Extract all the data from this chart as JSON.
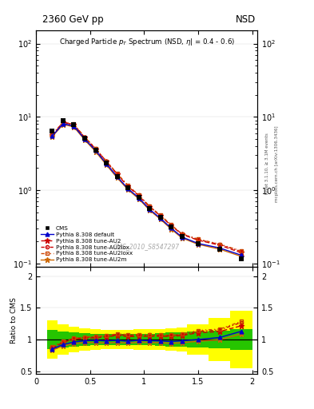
{
  "cms_x": [
    0.15,
    0.25,
    0.35,
    0.45,
    0.55,
    0.65,
    0.75,
    0.85,
    0.95,
    1.05,
    1.15,
    1.25,
    1.35,
    1.5,
    1.7,
    1.9
  ],
  "cms_y": [
    6.5,
    8.8,
    7.8,
    5.1,
    3.55,
    2.35,
    1.55,
    1.08,
    0.8,
    0.56,
    0.425,
    0.315,
    0.235,
    0.188,
    0.158,
    0.115
  ],
  "default_x": [
    0.15,
    0.25,
    0.35,
    0.45,
    0.55,
    0.65,
    0.75,
    0.85,
    0.95,
    1.05,
    1.15,
    1.25,
    1.35,
    1.5,
    1.7,
    1.9
  ],
  "default_y": [
    5.5,
    8.1,
    7.5,
    5.0,
    3.5,
    2.3,
    1.53,
    1.05,
    0.79,
    0.55,
    0.415,
    0.305,
    0.23,
    0.188,
    0.163,
    0.13
  ],
  "au2_x": [
    0.15,
    0.25,
    0.35,
    0.45,
    0.55,
    0.65,
    0.75,
    0.85,
    0.95,
    1.05,
    1.15,
    1.25,
    1.35,
    1.5,
    1.7,
    1.9
  ],
  "au2_y": [
    5.6,
    8.4,
    7.8,
    5.2,
    3.65,
    2.45,
    1.65,
    1.13,
    0.84,
    0.59,
    0.448,
    0.33,
    0.25,
    0.208,
    0.178,
    0.14
  ],
  "au2lox_x": [
    0.15,
    0.25,
    0.35,
    0.45,
    0.55,
    0.65,
    0.75,
    0.85,
    0.95,
    1.05,
    1.15,
    1.25,
    1.35,
    1.5,
    1.7,
    1.9
  ],
  "au2lox_y": [
    5.7,
    8.5,
    7.9,
    5.25,
    3.7,
    2.48,
    1.67,
    1.15,
    0.855,
    0.6,
    0.453,
    0.334,
    0.253,
    0.212,
    0.182,
    0.146
  ],
  "au2loxx_x": [
    0.15,
    0.25,
    0.35,
    0.45,
    0.55,
    0.65,
    0.75,
    0.85,
    0.95,
    1.05,
    1.15,
    1.25,
    1.35,
    1.5,
    1.7,
    1.9
  ],
  "au2loxx_y": [
    5.75,
    8.55,
    7.95,
    5.3,
    3.73,
    2.5,
    1.69,
    1.165,
    0.865,
    0.605,
    0.457,
    0.337,
    0.255,
    0.215,
    0.184,
    0.148
  ],
  "au2m_x": [
    0.15,
    0.25,
    0.35,
    0.45,
    0.55,
    0.65,
    0.75,
    0.85,
    0.95,
    1.05,
    1.15,
    1.25,
    1.35,
    1.5,
    1.7,
    1.9
  ],
  "au2m_y": [
    5.4,
    7.9,
    7.3,
    4.85,
    3.38,
    2.22,
    1.48,
    1.02,
    0.765,
    0.535,
    0.403,
    0.296,
    0.223,
    0.183,
    0.157,
    0.125
  ],
  "ratio_default": [
    0.85,
    0.92,
    0.96,
    0.98,
    0.986,
    0.979,
    0.987,
    0.972,
    0.988,
    0.982,
    0.977,
    0.968,
    0.979,
    1.0,
    1.032,
    1.13
  ],
  "ratio_au2": [
    0.862,
    0.955,
    1.003,
    1.02,
    1.028,
    1.043,
    1.065,
    1.046,
    1.05,
    1.054,
    1.054,
    1.048,
    1.064,
    1.106,
    1.127,
    1.217
  ],
  "ratio_au2lox": [
    0.877,
    0.966,
    1.013,
    1.029,
    1.042,
    1.055,
    1.077,
    1.065,
    1.069,
    1.071,
    1.066,
    1.06,
    1.077,
    1.128,
    1.152,
    1.27
  ],
  "ratio_au2loxx": [
    0.885,
    0.971,
    1.019,
    1.039,
    1.05,
    1.064,
    1.09,
    1.079,
    1.081,
    1.08,
    1.075,
    1.07,
    1.085,
    1.143,
    1.165,
    1.287
  ],
  "ratio_au2m": [
    0.831,
    0.898,
    0.936,
    0.951,
    0.952,
    0.945,
    0.955,
    0.944,
    0.956,
    0.955,
    0.949,
    0.94,
    0.949,
    0.973,
    0.994,
    1.087
  ],
  "cms_err_yellow_lo": [
    0.7,
    0.76,
    0.8,
    0.82,
    0.84,
    0.85,
    0.85,
    0.85,
    0.84,
    0.84,
    0.83,
    0.82,
    0.81,
    0.76,
    0.66,
    0.55
  ],
  "cms_err_yellow_hi": [
    1.3,
    1.24,
    1.2,
    1.18,
    1.16,
    1.15,
    1.15,
    1.15,
    1.16,
    1.16,
    1.17,
    1.18,
    1.19,
    1.24,
    1.34,
    1.45
  ],
  "cms_err_green_lo": [
    0.85,
    0.87,
    0.89,
    0.9,
    0.91,
    0.91,
    0.91,
    0.91,
    0.91,
    0.91,
    0.9,
    0.89,
    0.88,
    0.87,
    0.855,
    0.83
  ],
  "cms_err_green_hi": [
    1.15,
    1.13,
    1.11,
    1.1,
    1.09,
    1.09,
    1.09,
    1.09,
    1.09,
    1.09,
    1.1,
    1.11,
    1.12,
    1.13,
    1.145,
    1.17
  ],
  "bin_edges": [
    0.1,
    0.2,
    0.3,
    0.4,
    0.5,
    0.6,
    0.7,
    0.8,
    0.9,
    1.0,
    1.1,
    1.2,
    1.3,
    1.4,
    1.6,
    1.8,
    2.0
  ],
  "color_cms": "#000000",
  "color_default": "#0000cc",
  "color_au2": "#cc0000",
  "color_au2lox": "#cc0000",
  "color_au2loxx": "#cc4400",
  "color_au2m": "#cc6600",
  "color_yellow": "#ffff00",
  "color_green": "#00bb00",
  "ylim_main": [
    0.09,
    150
  ],
  "ylim_ratio": [
    0.45,
    2.15
  ],
  "xlim": [
    0.0,
    2.05
  ],
  "title_top": "2360 GeV pp",
  "title_top_right": "NSD",
  "watermark": "CMS_2010_S8547297",
  "ylabel_ratio": "Ratio to CMS",
  "right_label1": "Rivet 3.1.10, ≥ 3.1M events",
  "right_label2": "mcplots.cern.ch [arXiv:1306.3436]"
}
